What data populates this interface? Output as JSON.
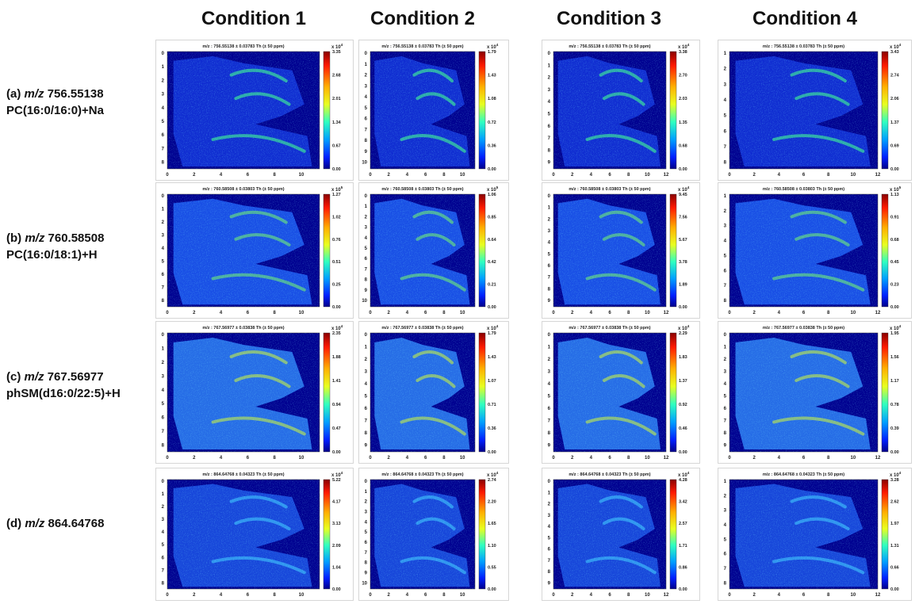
{
  "columns": [
    "Condition 1",
    "Condition 2",
    "Condition 3",
    "Condition 4"
  ],
  "rows": [
    {
      "letter": "(a)",
      "unit": "m/z",
      "mass": "756.55138",
      "compound": "PC(16:0/16:0)+Na",
      "panels": [
        {
          "title": "m/z : 756.55138 ± 0.03783 Th (± 50 ppm)",
          "scale": "x 10",
          "exponent": "4",
          "colorbar_ticks": [
            "3.35",
            "2.68",
            "2.01",
            "1.34",
            "0.67",
            "0.00"
          ],
          "xticks": [
            "0",
            "2",
            "4",
            "6",
            "8",
            "10"
          ],
          "yticks": [
            "0",
            "1",
            "2",
            "3",
            "4",
            "5",
            "6",
            "7",
            "8"
          ]
        },
        {
          "title": "m/z : 756.55138 ± 0.03783 Th (± 50 ppm)",
          "scale": "x 10",
          "exponent": "4",
          "colorbar_ticks": [
            "1.79",
            "1.43",
            "1.08",
            "0.72",
            "0.36",
            "0.00"
          ],
          "xticks": [
            "0",
            "2",
            "4",
            "6",
            "8",
            "10"
          ],
          "yticks": [
            "0",
            "1",
            "2",
            "3",
            "4",
            "5",
            "6",
            "7",
            "8",
            "9",
            "10"
          ]
        },
        {
          "title": "m/z : 756.55138 ± 0.03783 Th (± 50 ppm)",
          "scale": "x 10",
          "exponent": "4",
          "colorbar_ticks": [
            "3.38",
            "2.70",
            "2.03",
            "1.35",
            "0.68",
            "0.00"
          ],
          "xticks": [
            "0",
            "2",
            "4",
            "6",
            "8",
            "10",
            "12"
          ],
          "yticks": [
            "0",
            "1",
            "2",
            "3",
            "4",
            "5",
            "6",
            "7",
            "8",
            "9"
          ]
        },
        {
          "title": "m/z : 756.55138 ± 0.03783 Th (± 50 ppm)",
          "scale": "x 10",
          "exponent": "4",
          "colorbar_ticks": [
            "3.43",
            "2.74",
            "2.06",
            "1.37",
            "0.69",
            "0.00"
          ],
          "xticks": [
            "0",
            "2",
            "4",
            "6",
            "8",
            "10",
            "12"
          ],
          "yticks": [
            "1",
            "2",
            "3",
            "4",
            "5",
            "6",
            "7",
            "8"
          ]
        }
      ]
    },
    {
      "letter": "(b)",
      "unit": "m/z",
      "mass": "760.58508",
      "compound": "PC(16:0/18:1)+H",
      "panels": [
        {
          "title": "m/z : 760.58508 ± 0.03803 Th (± 50 ppm)",
          "scale": "x 10",
          "exponent": "5",
          "colorbar_ticks": [
            "1.27",
            "1.02",
            "0.76",
            "0.51",
            "0.25",
            "0.00"
          ],
          "xticks": [
            "0",
            "2",
            "4",
            "6",
            "8",
            "10"
          ],
          "yticks": [
            "0",
            "1",
            "2",
            "3",
            "4",
            "5",
            "6",
            "7",
            "8"
          ]
        },
        {
          "title": "m/z : 760.58508 ± 0.03803 Th (± 50 ppm)",
          "scale": "x 10",
          "exponent": "5",
          "colorbar_ticks": [
            "1.06",
            "0.85",
            "0.64",
            "0.42",
            "0.21",
            "0.00"
          ],
          "xticks": [
            "0",
            "2",
            "4",
            "6",
            "8",
            "10"
          ],
          "yticks": [
            "0",
            "1",
            "2",
            "3",
            "4",
            "5",
            "6",
            "7",
            "8",
            "9",
            "10"
          ]
        },
        {
          "title": "m/z : 760.58508 ± 0.03803 Th (± 50 ppm)",
          "scale": "x 10",
          "exponent": "4",
          "colorbar_ticks": [
            "9.45",
            "7.56",
            "5.67",
            "3.78",
            "1.89",
            "0.00"
          ],
          "xticks": [
            "0",
            "2",
            "4",
            "6",
            "8",
            "10",
            "12"
          ],
          "yticks": [
            "0",
            "1",
            "2",
            "3",
            "4",
            "5",
            "6",
            "7",
            "8",
            "9"
          ]
        },
        {
          "title": "m/z : 760.58508 ± 0.03803 Th (± 50 ppm)",
          "scale": "x 10",
          "exponent": "5",
          "colorbar_ticks": [
            "1.13",
            "0.91",
            "0.68",
            "0.45",
            "0.23",
            "0.00"
          ],
          "xticks": [
            "0",
            "2",
            "4",
            "6",
            "8",
            "10",
            "12"
          ],
          "yticks": [
            "1",
            "2",
            "3",
            "4",
            "5",
            "6",
            "7",
            "8"
          ]
        }
      ]
    },
    {
      "letter": "(c)",
      "unit": "m/z",
      "mass": "767.56977",
      "compound": "phSM(d16:0/22:5)+H",
      "panels": [
        {
          "title": "m/z : 767.56977 ± 0.03838 Th (± 50 ppm)",
          "scale": "x 10",
          "exponent": "4",
          "colorbar_ticks": [
            "2.35",
            "1.88",
            "1.41",
            "0.94",
            "0.47",
            "0.00"
          ],
          "xticks": [
            "0",
            "2",
            "4",
            "6",
            "8",
            "10"
          ],
          "yticks": [
            "0",
            "1",
            "2",
            "3",
            "4",
            "5",
            "6",
            "7",
            "8"
          ]
        },
        {
          "title": "m/z : 767.56977 ± 0.03838 Th (± 50 ppm)",
          "scale": "x 10",
          "exponent": "4",
          "colorbar_ticks": [
            "1.79",
            "1.43",
            "1.07",
            "0.71",
            "0.36",
            "0.00"
          ],
          "xticks": [
            "0",
            "2",
            "4",
            "6",
            "8",
            "10"
          ],
          "yticks": [
            "0",
            "1",
            "2",
            "3",
            "4",
            "5",
            "6",
            "7",
            "8",
            "9"
          ]
        },
        {
          "title": "m/z : 767.56977 ± 0.03838 Th (± 50 ppm)",
          "scale": "x 10",
          "exponent": "4",
          "colorbar_ticks": [
            "2.29",
            "1.83",
            "1.37",
            "0.92",
            "0.46",
            "0.00"
          ],
          "xticks": [
            "0",
            "2",
            "4",
            "6",
            "8",
            "10",
            "12"
          ],
          "yticks": [
            "0",
            "1",
            "2",
            "3",
            "4",
            "5",
            "6",
            "7",
            "8",
            "9"
          ]
        },
        {
          "title": "m/z : 767.56977 ± 0.03838 Th (± 50 ppm)",
          "scale": "x 10",
          "exponent": "4",
          "colorbar_ticks": [
            "1.95",
            "1.56",
            "1.17",
            "0.78",
            "0.39",
            "0.00"
          ],
          "xticks": [
            "0",
            "2",
            "4",
            "6",
            "8",
            "10",
            "12"
          ],
          "yticks": [
            "0",
            "1",
            "2",
            "3",
            "4",
            "5",
            "6",
            "7",
            "8",
            "9"
          ]
        }
      ]
    },
    {
      "letter": "(d)",
      "unit": "m/z",
      "mass": "864.64768",
      "panels": [
        {
          "title": "m/z : 864.64768 ± 0.04323 Th (± 50 ppm)",
          "scale": "x 10",
          "exponent": "4",
          "colorbar_ticks": [
            "5.22",
            "4.17",
            "3.13",
            "2.09",
            "1.04",
            "0.00"
          ],
          "xticks": [
            "0",
            "2",
            "4",
            "6",
            "8",
            "10"
          ],
          "yticks": [
            "0",
            "1",
            "2",
            "3",
            "4",
            "5",
            "6",
            "7",
            "8"
          ]
        },
        {
          "title": "m/z : 864.64768 ± 0.04323 Th (± 50 ppm)",
          "scale": "x 10",
          "exponent": "4",
          "colorbar_ticks": [
            "2.74",
            "2.20",
            "1.65",
            "1.10",
            "0.55",
            "0.00"
          ],
          "xticks": [
            "0",
            "2",
            "4",
            "6",
            "8",
            "10"
          ],
          "yticks": [
            "0",
            "1",
            "2",
            "3",
            "4",
            "5",
            "6",
            "7",
            "8",
            "9",
            "10"
          ]
        },
        {
          "title": "m/z : 864.64768 ± 0.04323 Th (± 50 ppm)",
          "scale": "x 10",
          "exponent": "4",
          "colorbar_ticks": [
            "4.28",
            "3.42",
            "2.57",
            "1.71",
            "0.86",
            "0.00"
          ],
          "xticks": [
            "0",
            "2",
            "4",
            "6",
            "8",
            "10",
            "12"
          ],
          "yticks": [
            "0",
            "1",
            "2",
            "3",
            "4",
            "5",
            "6",
            "7",
            "8",
            "9"
          ]
        },
        {
          "title": "m/z : 864.64768 ± 0.04323 Th (± 50 ppm)",
          "scale": "x 10",
          "exponent": "4",
          "colorbar_ticks": [
            "3.28",
            "2.62",
            "1.97",
            "1.31",
            "0.66",
            "0.00"
          ],
          "xticks": [
            "0",
            "2",
            "4",
            "6",
            "8",
            "10",
            "12"
          ],
          "yticks": [
            "1",
            "2",
            "3",
            "4",
            "5",
            "6",
            "7",
            "8"
          ]
        }
      ]
    }
  ]
}
